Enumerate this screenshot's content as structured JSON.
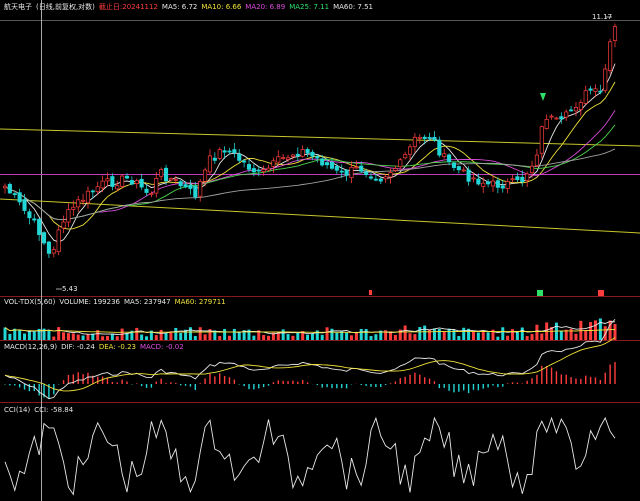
{
  "header_main": {
    "name": "航天电子",
    "mode": "(日线,前复权,对数)",
    "date": "截止日:20241112",
    "ma5": "MA5: 6.72",
    "ma10": "MA10: 6.66",
    "ma20": "MA20: 6.89",
    "ma25": "MA25: 7.11",
    "ma60": "MA60: 7.51"
  },
  "header_vol": {
    "name": "VOL-TDX(5,60)",
    "volume": "VOLUME: 199236",
    "ma5": "MA5: 237947",
    "ma60": "MA60: 279711"
  },
  "header_macd": {
    "name": "MACD(12,26,9)",
    "dif": "DIF: -0.24",
    "dea": "DEA: -0.23",
    "macd": "MACD: -0.02"
  },
  "header_cci": {
    "name": "CCI(14)",
    "cci": "CCI: -58.84"
  },
  "price_labels": {
    "high": "11.17",
    "low": "5.43"
  },
  "colors": {
    "up": "#ff3d3d",
    "down": "#22d6d6",
    "ma_white": "#e8e8e8",
    "ma_yellow": "#f0e23a",
    "ma_magenta": "#d84bd8",
    "ma_green": "#4cd24c",
    "trend": "#c8c62a",
    "horizontal": "#c03cc0"
  },
  "chart_data": [
    {
      "type": "candlestick",
      "title": "航天电子",
      "price_range": [
        5.43,
        11.17
      ],
      "series_count": 126
    },
    {
      "type": "bar",
      "title": "VOL-TDX(5,60)"
    },
    {
      "type": "bar",
      "title": "MACD(12,26,9)"
    },
    {
      "type": "line",
      "title": "CCI(14)"
    }
  ]
}
